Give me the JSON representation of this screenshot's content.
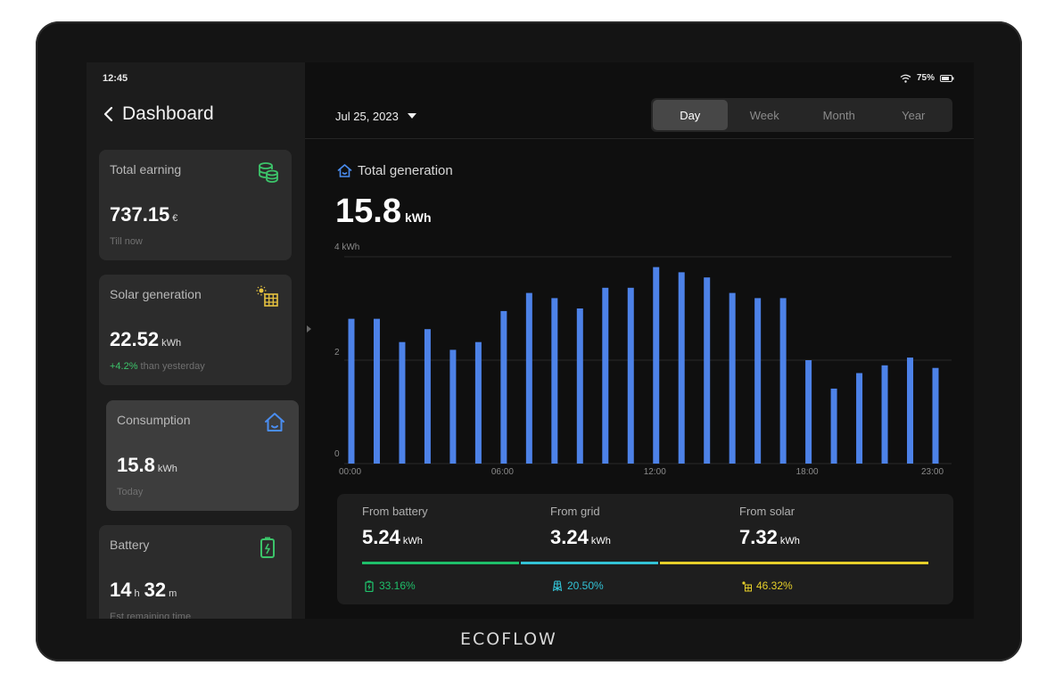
{
  "status": {
    "time": "12:45",
    "battery": "75%"
  },
  "sidebar": {
    "title": "Dashboard",
    "cards": [
      {
        "title": "Total earning",
        "value": "737.15",
        "unit": "€",
        "sub": "Till now",
        "icon": "coins-icon",
        "icon_color": "#3cc46a"
      },
      {
        "title": "Solar generation",
        "value": "22.52",
        "unit": "kWh",
        "sub_highlight": "+4.2%",
        "sub": " than yesterday",
        "icon": "solar-panel-icon",
        "icon_color": "#e8c440"
      },
      {
        "title": "Consumption",
        "value": "15.8",
        "unit": "kWh",
        "sub": "Today",
        "icon": "home-icon",
        "icon_color": "#4a8df0"
      },
      {
        "title": "Battery",
        "value_hours": "14",
        "unit_hours": "h",
        "value_minutes": "32",
        "unit_minutes": "m",
        "sub": "Est.remaining time",
        "icon": "battery-icon",
        "icon_color": "#3cc46a"
      }
    ]
  },
  "header": {
    "date": "Jul 25, 2023",
    "tabs": [
      "Day",
      "Week",
      "Month",
      "Year"
    ],
    "active_tab": "Day"
  },
  "generation": {
    "label": "Total generation",
    "value": "15.8",
    "unit": "kWh"
  },
  "chart_data": {
    "type": "bar",
    "ylabel": "kWh",
    "ylim": [
      0,
      4
    ],
    "yticks": [
      "0",
      "2",
      "4 kWh"
    ],
    "xticks": [
      "00:00",
      "06:00",
      "12:00",
      "18:00",
      "23:00"
    ],
    "categories": [
      "00:00",
      "01:00",
      "02:00",
      "03:00",
      "04:00",
      "05:00",
      "06:00",
      "07:00",
      "08:00",
      "09:00",
      "10:00",
      "11:00",
      "12:00",
      "13:00",
      "14:00",
      "15:00",
      "16:00",
      "17:00",
      "18:00",
      "19:00",
      "20:00",
      "21:00",
      "22:00",
      "23:00"
    ],
    "values": [
      2.8,
      2.8,
      2.35,
      2.6,
      2.2,
      2.35,
      2.95,
      3.3,
      3.2,
      3.0,
      3.4,
      3.4,
      3.8,
      3.7,
      3.6,
      3.3,
      3.2,
      3.2,
      2.0,
      1.45,
      1.75,
      1.9,
      2.05,
      1.85
    ],
    "color": "#4d82e8",
    "grid": true
  },
  "sources": [
    {
      "label": "From battery",
      "value": "5.24",
      "unit": "kWh",
      "percent": "33.16%",
      "color": "#1fbf6a",
      "icon": "battery-icon"
    },
    {
      "label": "From grid",
      "value": "3.24",
      "unit": "kWh",
      "percent": "20.50%",
      "color": "#33c3d6",
      "icon": "grid-tower-icon"
    },
    {
      "label": "From solar",
      "value": "7.32",
      "unit": "kWh",
      "percent": "46.32%",
      "color": "#e6cf2a",
      "icon": "solar-panel-icon"
    }
  ],
  "brand": "ECOFLOW"
}
